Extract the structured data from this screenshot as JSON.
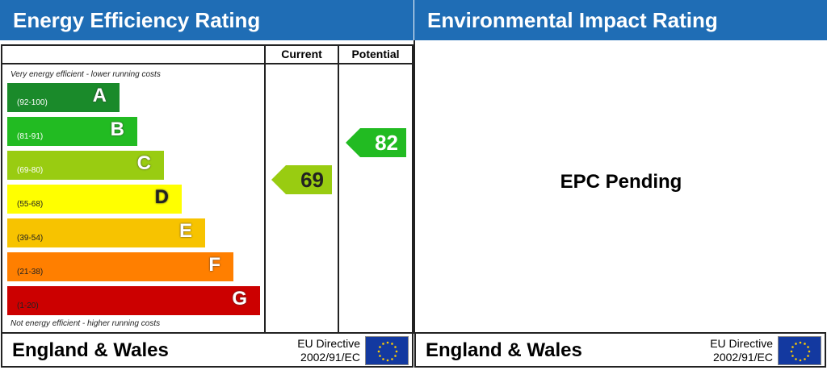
{
  "left": {
    "title": "Energy Efficiency Rating",
    "col_current": "Current",
    "col_potential": "Potential",
    "top_note": "Very energy efficient - lower running costs",
    "bottom_note": "Not energy efficient - higher running costs",
    "bands": [
      {
        "range": "(92-100)",
        "letter": "A",
        "color": "#1a8a2a"
      },
      {
        "range": "(81-91)",
        "letter": "B",
        "color": "#22bb22"
      },
      {
        "range": "(69-80)",
        "letter": "C",
        "color": "#99cc11"
      },
      {
        "range": "(55-68)",
        "letter": "D",
        "color": "#ffff00"
      },
      {
        "range": "(39-54)",
        "letter": "E",
        "color": "#f7c300"
      },
      {
        "range": "(21-38)",
        "letter": "F",
        "color": "#ff7f00"
      },
      {
        "range": "(1-20)",
        "letter": "G",
        "color": "#cc0000"
      }
    ],
    "current": {
      "value": "69",
      "color": "#99cc11"
    },
    "potential": {
      "value": "82",
      "color": "#22bb22"
    },
    "footer": {
      "region": "England & Wales",
      "directive_line1": "EU Directive",
      "directive_line2": "2002/91/EC"
    }
  },
  "right": {
    "title": "Environmental Impact Rating",
    "status": "EPC Pending",
    "footer": {
      "region": "England & Wales",
      "directive_line1": "EU Directive",
      "directive_line2": "2002/91/EC"
    }
  }
}
